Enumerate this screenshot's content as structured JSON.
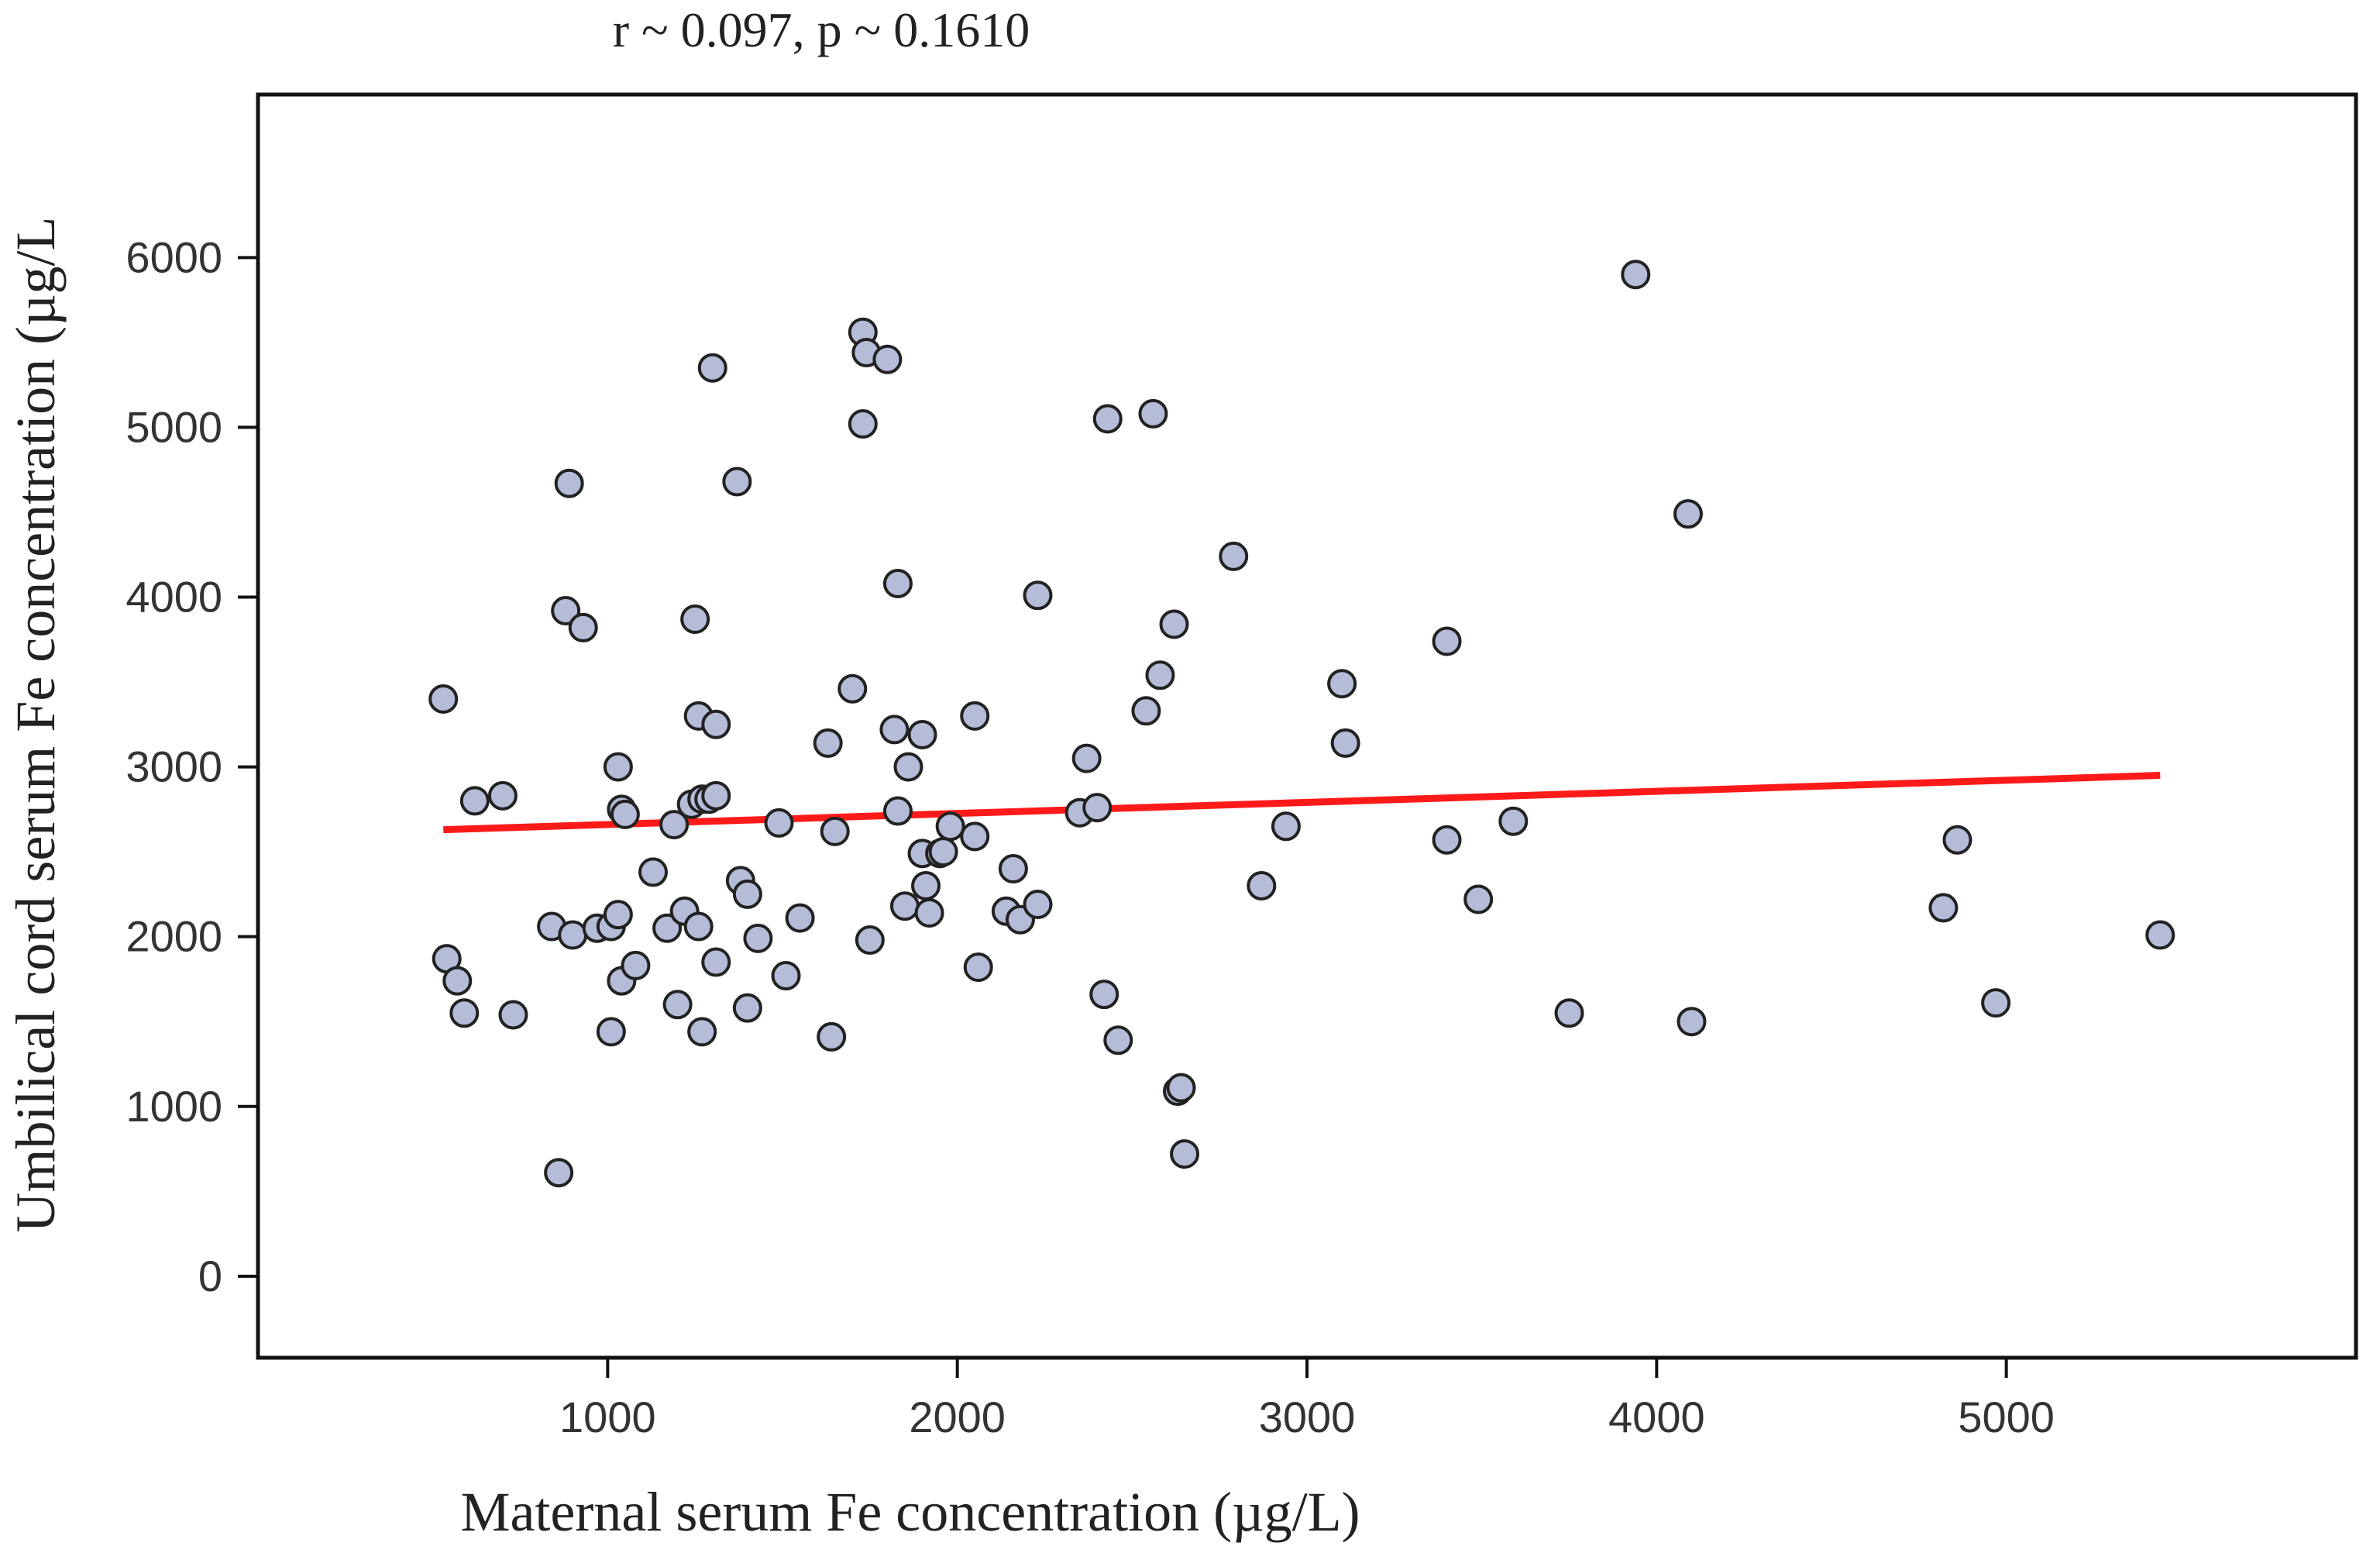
{
  "chart_data": {
    "type": "scatter",
    "title": "r ~ 0.097,   p ~ 0.1610",
    "xlabel": "Maternal serum Fe concentration (µg/L)",
    "ylabel": "Umbilical cord serum Fe concentration (µg/L",
    "xlim": [
      0,
      6000
    ],
    "ylim": [
      -480,
      6960
    ],
    "xticks": [
      1000,
      2000,
      3000,
      4000,
      5000
    ],
    "xtick_labels": [
      "1000",
      "2000",
      "3000",
      "4000",
      "5000"
    ],
    "yticks": [
      0,
      1000,
      2000,
      3000,
      4000,
      5000,
      6000
    ],
    "ytick_labels": [
      "0",
      "1000",
      "2000",
      "3000",
      "4000",
      "5000",
      "6000"
    ],
    "grid": false,
    "marker_color": "#b4bcd8",
    "marker_edge": "#222222",
    "series": [
      {
        "name": "observations",
        "points": [
          [
            530,
            3400
          ],
          [
            540,
            1870
          ],
          [
            570,
            1740
          ],
          [
            590,
            1550
          ],
          [
            620,
            2800
          ],
          [
            700,
            2830
          ],
          [
            730,
            1540
          ],
          [
            840,
            2060
          ],
          [
            860,
            610
          ],
          [
            880,
            3920
          ],
          [
            890,
            4670
          ],
          [
            900,
            2010
          ],
          [
            930,
            3820
          ],
          [
            970,
            2050
          ],
          [
            1010,
            2060
          ],
          [
            1010,
            1440
          ],
          [
            1030,
            2130
          ],
          [
            1030,
            3000
          ],
          [
            1040,
            1740
          ],
          [
            1040,
            2750
          ],
          [
            1050,
            2720
          ],
          [
            1080,
            1830
          ],
          [
            1130,
            2380
          ],
          [
            1170,
            2050
          ],
          [
            1190,
            2660
          ],
          [
            1200,
            1600
          ],
          [
            1220,
            2150
          ],
          [
            1240,
            2780
          ],
          [
            1250,
            3870
          ],
          [
            1260,
            3300
          ],
          [
            1260,
            2060
          ],
          [
            1270,
            2810
          ],
          [
            1270,
            1440
          ],
          [
            1290,
            2810
          ],
          [
            1300,
            5350
          ],
          [
            1310,
            3250
          ],
          [
            1310,
            1850
          ],
          [
            1310,
            2830
          ],
          [
            1370,
            4680
          ],
          [
            1380,
            2330
          ],
          [
            1400,
            2250
          ],
          [
            1400,
            1580
          ],
          [
            1430,
            1990
          ],
          [
            1490,
            2670
          ],
          [
            1510,
            1770
          ],
          [
            1550,
            2110
          ],
          [
            1630,
            3140
          ],
          [
            1640,
            1410
          ],
          [
            1650,
            2620
          ],
          [
            1700,
            3460
          ],
          [
            1730,
            5560
          ],
          [
            1730,
            5020
          ],
          [
            1740,
            5440
          ],
          [
            1750,
            1980
          ],
          [
            1800,
            5400
          ],
          [
            1820,
            3220
          ],
          [
            1830,
            2740
          ],
          [
            1830,
            4080
          ],
          [
            1850,
            2180
          ],
          [
            1860,
            3000
          ],
          [
            1900,
            3190
          ],
          [
            1900,
            2490
          ],
          [
            1910,
            2300
          ],
          [
            1920,
            2140
          ],
          [
            1950,
            2490
          ],
          [
            1960,
            2500
          ],
          [
            1980,
            2650
          ],
          [
            2050,
            3300
          ],
          [
            2050,
            2590
          ],
          [
            2060,
            1820
          ],
          [
            2140,
            2150
          ],
          [
            2160,
            2400
          ],
          [
            2180,
            2100
          ],
          [
            2230,
            4010
          ],
          [
            2230,
            2190
          ],
          [
            2350,
            2730
          ],
          [
            2370,
            3050
          ],
          [
            2400,
            2760
          ],
          [
            2420,
            1660
          ],
          [
            2430,
            5050
          ],
          [
            2460,
            1390
          ],
          [
            2540,
            3330
          ],
          [
            2560,
            5080
          ],
          [
            2580,
            3540
          ],
          [
            2620,
            3840
          ],
          [
            2630,
            1090
          ],
          [
            2640,
            1110
          ],
          [
            2650,
            720
          ],
          [
            2790,
            4240
          ],
          [
            2870,
            2300
          ],
          [
            2940,
            2650
          ],
          [
            3100,
            3490
          ],
          [
            3110,
            3140
          ],
          [
            3400,
            3740
          ],
          [
            3400,
            2570
          ],
          [
            3490,
            2220
          ],
          [
            3590,
            2680
          ],
          [
            3750,
            1550
          ],
          [
            3940,
            5900
          ],
          [
            4090,
            4490
          ],
          [
            4100,
            1500
          ],
          [
            4820,
            2170
          ],
          [
            4860,
            2570
          ],
          [
            4970,
            1610
          ],
          [
            5440,
            2010
          ]
        ]
      }
    ],
    "fit_line": {
      "x": [
        530,
        5440
      ],
      "y": [
        2630,
        2950
      ],
      "color": "#ff1a1a"
    }
  }
}
